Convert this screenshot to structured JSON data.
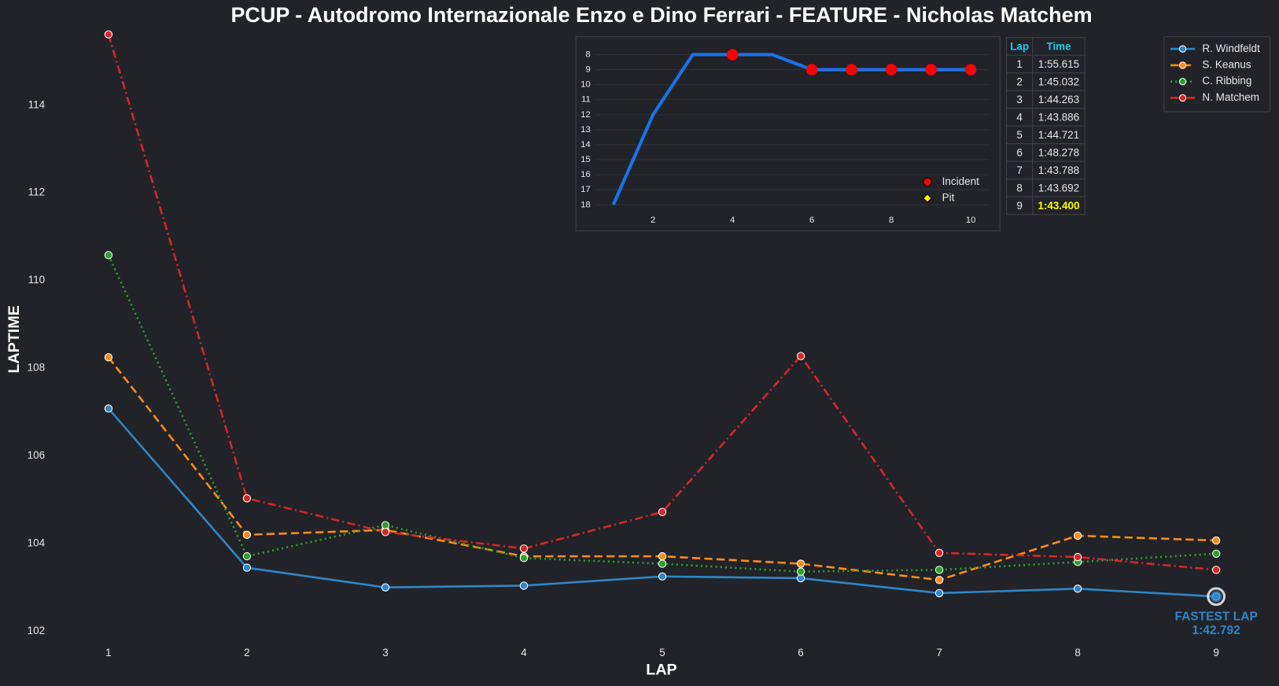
{
  "chart_data": [
    {
      "type": "line",
      "title": "PCUP - Autodromo Internazionale Enzo e Dino Ferrari - FEATURE - Nicholas Matchem",
      "xlabel": "LAP",
      "ylabel": "LAPTIME",
      "x": [
        1,
        2,
        3,
        4,
        5,
        6,
        7,
        8,
        9
      ],
      "xlim": [
        0.6,
        9.4
      ],
      "xticks": [
        1,
        2,
        3,
        4,
        5,
        6,
        7,
        8,
        9
      ],
      "ylim": [
        101.7,
        115.8
      ],
      "yticks": [
        102,
        104,
        106,
        108,
        110,
        112,
        114
      ],
      "legend": "upper right",
      "series": [
        {
          "name": "R. Windfeldt",
          "color": "#2f86c8",
          "linestyle": "solid",
          "values": [
            107.08,
            103.45,
            103.0,
            103.04,
            103.25,
            103.21,
            102.87,
            102.97,
            102.792
          ]
        },
        {
          "name": "S. Keanus",
          "color": "#ff8c1a",
          "linestyle": "dashed",
          "values": [
            108.25,
            104.2,
            104.31,
            103.71,
            103.71,
            103.54,
            103.17,
            104.18,
            104.07
          ]
        },
        {
          "name": "C. Ribbing",
          "color": "#2ca02c",
          "linestyle": "dotted",
          "values": [
            110.58,
            103.71,
            104.42,
            103.67,
            103.54,
            103.36,
            103.4,
            103.58,
            103.77
          ]
        },
        {
          "name": "N. Matchem",
          "color": "#d62728",
          "linestyle": "dashdot",
          "values": [
            115.615,
            105.032,
            104.263,
            103.886,
            104.721,
            108.278,
            103.788,
            103.692,
            103.4
          ]
        }
      ],
      "annotation": [
        "FASTEST LAP",
        "1:42.792"
      ]
    },
    {
      "type": "line",
      "x": [
        1,
        2,
        3,
        4,
        5,
        6,
        7,
        8,
        9,
        10
      ],
      "values": [
        18,
        12,
        8,
        8,
        8,
        9,
        9,
        9,
        9,
        9
      ],
      "color": "#1a73e8",
      "xlim": [
        0.55,
        10.47
      ],
      "xticks": [
        2,
        4,
        6,
        8,
        10
      ],
      "ylim": [
        18.5,
        7.5
      ],
      "yticks": [
        8,
        9,
        10,
        11,
        12,
        13,
        14,
        15,
        16,
        17,
        18
      ],
      "grid": true,
      "markers": [
        {
          "name": "Incident",
          "color": "#ff0000",
          "x": [
            4,
            6,
            7,
            8,
            9,
            10
          ],
          "values": [
            8,
            9,
            9,
            9,
            9,
            9
          ]
        },
        {
          "name": "Pit",
          "color": "#ffff00",
          "x": [],
          "values": []
        }
      ]
    }
  ],
  "table": {
    "header": [
      "Lap",
      "Time"
    ],
    "header_color": "#1ec8f0",
    "best_color": "#ffff00",
    "rows": [
      [
        "1",
        "1:55.615"
      ],
      [
        "2",
        "1:45.032"
      ],
      [
        "3",
        "1:44.263"
      ],
      [
        "4",
        "1:43.886"
      ],
      [
        "5",
        "1:44.721"
      ],
      [
        "6",
        "1:48.278"
      ],
      [
        "7",
        "1:43.788"
      ],
      [
        "8",
        "1:43.692"
      ],
      [
        "9",
        "1:43.400"
      ]
    ]
  }
}
